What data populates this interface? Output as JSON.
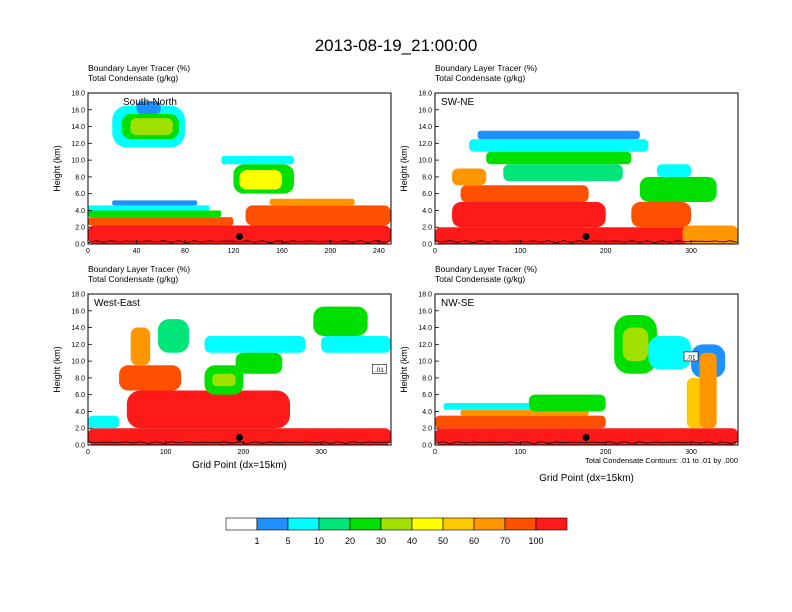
{
  "figure": {
    "title": "2013-08-19_21:00:00",
    "panel_header_line1": "Boundary Layer Tracer   (%)",
    "panel_header_line2": "Total Condensate   (g/kg)",
    "contour_note": "Total Condensate Contours: .01 to .01 by .000"
  },
  "chart_data": [
    {
      "type": "heatmap",
      "name": "South-North",
      "label": "South-North",
      "ylabel": "Height (km)",
      "xlabel": "",
      "xlim": [
        0,
        250
      ],
      "ylim": [
        0,
        18
      ],
      "xticks": [
        0,
        40,
        80,
        120,
        160,
        200,
        240
      ],
      "yticks": [
        0,
        2,
        4,
        6,
        8,
        10,
        12,
        14,
        16,
        18
      ],
      "marker_x": 125,
      "contour_label": ""
    },
    {
      "type": "heatmap",
      "name": "SW-NE",
      "label": "SW-NE",
      "ylabel": "Height (km)",
      "xlabel": "",
      "xlim": [
        0,
        355
      ],
      "ylim": [
        0,
        18
      ],
      "xticks": [
        0,
        100,
        200,
        300
      ],
      "yticks": [
        0,
        2,
        4,
        6,
        8,
        10,
        12,
        14,
        16,
        18
      ],
      "marker_x": 177,
      "contour_label": ""
    },
    {
      "type": "heatmap",
      "name": "West-East",
      "label": "West-East",
      "ylabel": "Height (km)",
      "xlabel": "Grid Point (dx=15km)",
      "xlim": [
        0,
        390
      ],
      "ylim": [
        0,
        18
      ],
      "xticks": [
        0,
        100,
        200,
        300
      ],
      "yticks": [
        0,
        2,
        4,
        6,
        8,
        10,
        12,
        14,
        16,
        18
      ],
      "marker_x": 195,
      "contour_label": ".01"
    },
    {
      "type": "heatmap",
      "name": "NW-SE",
      "label": "NW-SE",
      "ylabel": "Height (km)",
      "xlabel": "Grid Point (dx=15km)",
      "xlim": [
        0,
        355
      ],
      "ylim": [
        0,
        18
      ],
      "xticks": [
        0,
        100,
        200,
        300
      ],
      "yticks": [
        0,
        2,
        4,
        6,
        8,
        10,
        12,
        14,
        16,
        18
      ],
      "marker_x": 177,
      "contour_label": ".01"
    }
  ],
  "colorbar": {
    "levels": [
      "1",
      "5",
      "10",
      "20",
      "30",
      "40",
      "50",
      "60",
      "70",
      "100"
    ],
    "colors": [
      "#ffffff",
      "#1e90ff",
      "#00ffff",
      "#00e57a",
      "#00e000",
      "#a0e000",
      "#ffff00",
      "#ffc800",
      "#ff9600",
      "#ff5000",
      "#ff1a1a"
    ]
  }
}
